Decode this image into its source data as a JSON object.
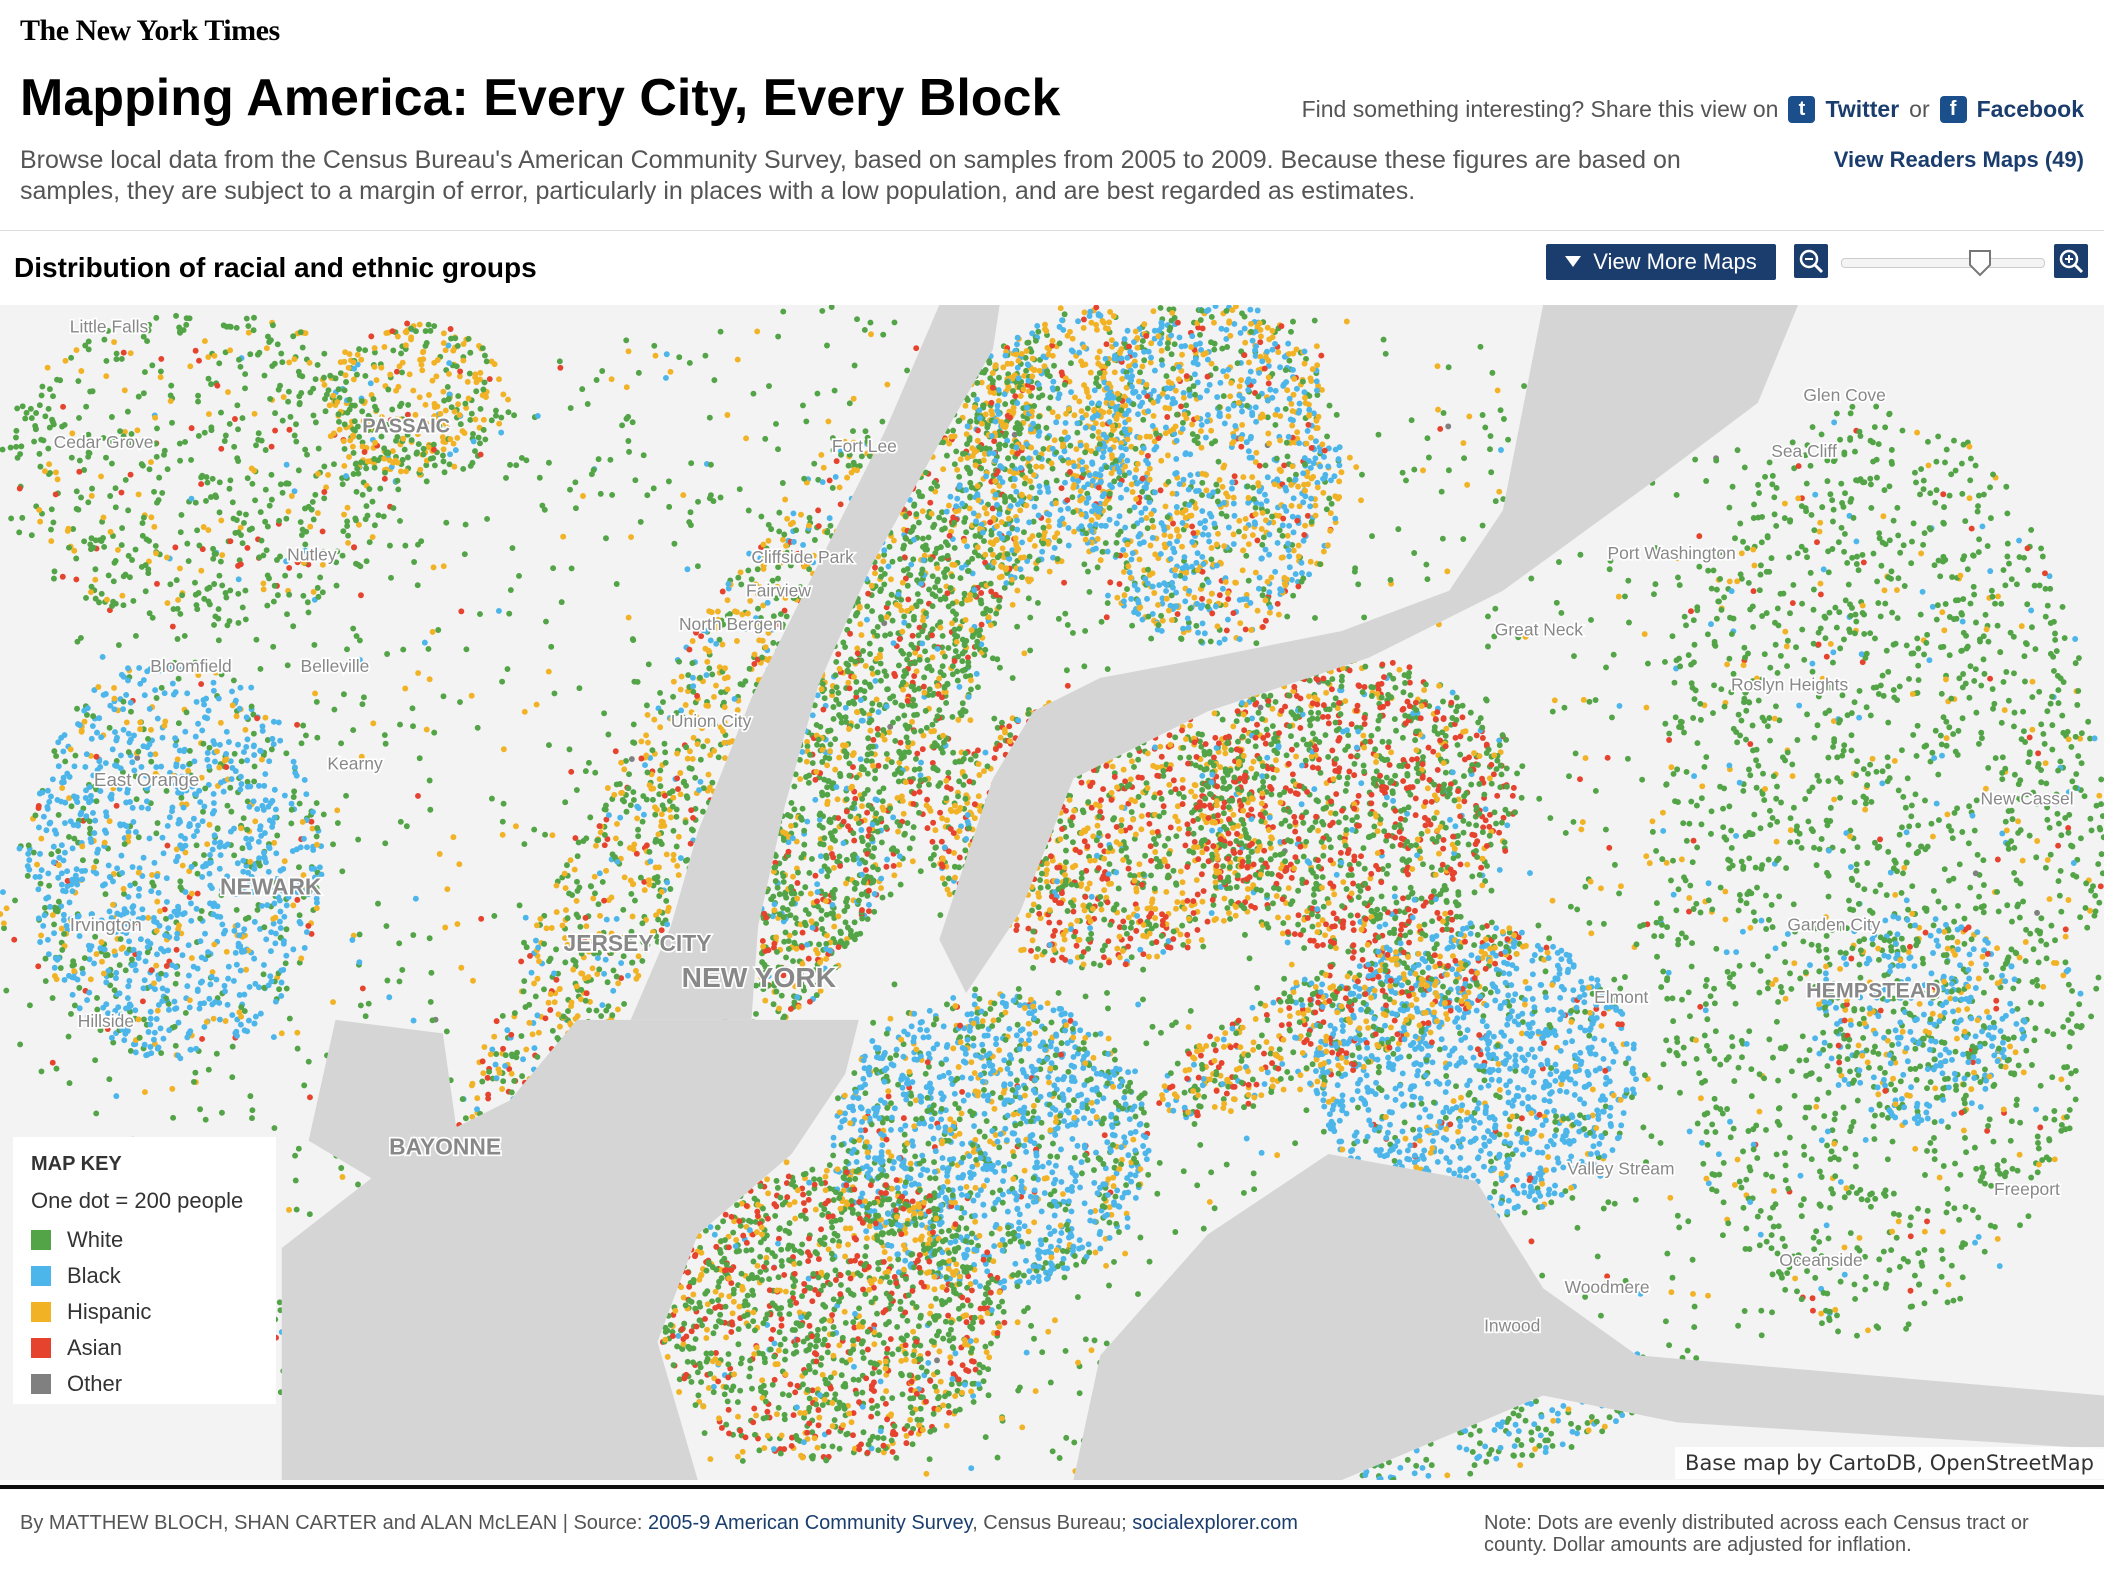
{
  "header": {
    "logo": "The New York Times",
    "title": "Mapping America: Every City, Every Block",
    "share_prompt": "Find something interesting? Share this view on",
    "twitter": "Twitter",
    "or": "or",
    "facebook": "Facebook",
    "description": "Browse local data from the Census Bureau's American Community Survey, based on samples from 2005 to 2009. Because these figures are based on samples, they are subject to a margin of error, particularly in places with a low population, and are best regarded as estimates.",
    "readers_maps": "View Readers Maps (49)"
  },
  "toolbar": {
    "map_title": "Distribution of racial and ethnic groups",
    "more_maps": "View More Maps"
  },
  "map_labels": [
    "Little Falls",
    "Cedar Grove",
    "PASSAIC",
    "Nutley",
    "Fort Lee",
    "Cliffside Park",
    "Fairview",
    "North Bergen",
    "Bloomfield",
    "Belleville",
    "Union City",
    "East Orange",
    "Kearny",
    "NEWARK",
    "Irvington",
    "JERSEY CITY",
    "NEW YORK",
    "Hillside",
    "BAYONNE",
    "Glen Cove",
    "Sea Cliff",
    "Port Washington",
    "Great Neck",
    "Roslyn Heights",
    "New Cassel",
    "Garden City",
    "HEMPSTEAD",
    "Elmont",
    "Valley Stream",
    "Freeport",
    "Oceanside",
    "Woodmere",
    "Inwood"
  ],
  "map_key": {
    "title": "MAP KEY",
    "subtitle": "One dot = 200 people",
    "items": [
      {
        "label": "White",
        "color": "#52a447"
      },
      {
        "label": "Black",
        "color": "#4cb5ea"
      },
      {
        "label": "Hispanic",
        "color": "#f1b325"
      },
      {
        "label": "Asian",
        "color": "#e6432f"
      },
      {
        "label": "Other",
        "color": "#808080"
      }
    ]
  },
  "attribution": "Base map by CartoDB, OpenStreetMap",
  "footer": {
    "byline": "By MATTHEW BLOCH, SHAN CARTER and ALAN McLEAN | Source:",
    "source_link": "2005-9 American Community Survey",
    "source_rest": ", Census Bureau;",
    "site_link": "socialexplorer.com",
    "note": "Note: Dots are evenly distributed across each Census tract or county. Dollar amounts are adjusted for inflation."
  }
}
